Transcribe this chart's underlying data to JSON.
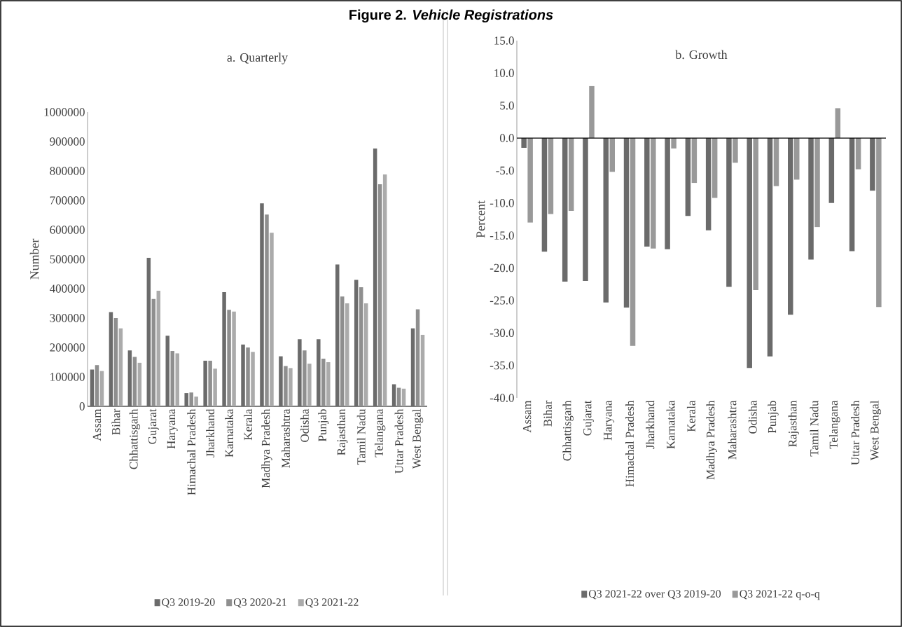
{
  "chart_data": [
    {
      "type": "bar",
      "title": "a. Quarterly",
      "ylabel": "Number",
      "annotations": [
        "Figure 2. *Vehicle Registrations*"
      ],
      "categories": [
        "Assam",
        "Bihar",
        "Chhattisgarh",
        "Gujarat",
        "Haryana",
        "Himachal Pradesh",
        "Jharkhand",
        "Karnataka",
        "Kerala",
        "Madhya Pradesh",
        "Maharashtra",
        "Odisha",
        "Punjab",
        "Rajasthan",
        "Tamil Nadu",
        "Telangana",
        "Uttar Pradesh",
        "West Bengal"
      ],
      "series": [
        {
          "name": "Q3 2019-20",
          "color": "#6b6b6b",
          "values": [
            125000,
            320000,
            190000,
            505000,
            240000,
            45000,
            155000,
            388000,
            210000,
            690000,
            170000,
            228000,
            228000,
            482000,
            430000,
            876000,
            75000,
            265000
          ]
        },
        {
          "name": "Q3 2020-21",
          "color": "#8f8f8f",
          "values": [
            140000,
            300000,
            168000,
            365000,
            188000,
            47000,
            155000,
            328000,
            200000,
            652000,
            137000,
            190000,
            162000,
            373000,
            405000,
            755000,
            63000,
            330000
          ]
        },
        {
          "name": "Q3 2021-22",
          "color": "#ababab",
          "values": [
            120000,
            265000,
            148000,
            393000,
            180000,
            33000,
            128000,
            322000,
            185000,
            590000,
            130000,
            145000,
            150000,
            350000,
            350000,
            788000,
            60000,
            243000
          ]
        }
      ],
      "ylim": [
        0,
        1000000
      ],
      "yticks": [
        0,
        100000,
        200000,
        300000,
        400000,
        500000,
        600000,
        700000,
        800000,
        900000,
        1000000
      ],
      "legend": "bottom"
    },
    {
      "type": "bar",
      "title": "b. Growth",
      "ylabel": "Percent",
      "categories": [
        "Assam",
        "Bihar",
        "Chhattisgarh",
        "Gujarat",
        "Haryana",
        "Himachal Pradesh",
        "Jharkhand",
        "Karnataka",
        "Kerala",
        "Madhya Pradesh",
        "Maharashtra",
        "Odisha",
        "Punjab",
        "Rajasthan",
        "Tamil Nadu",
        "Telangana",
        "Uttar Pradesh",
        "West Bengal"
      ],
      "series": [
        {
          "name": "Q3 2021-22 over Q3 2019-20",
          "color": "#6b6b6b",
          "values": [
            -1.5,
            -17.5,
            -22.1,
            -22.0,
            -25.3,
            -26.1,
            -16.7,
            -17.1,
            -12.0,
            -14.2,
            -22.9,
            -35.4,
            -33.6,
            -27.2,
            -18.7,
            -10.0,
            -17.4,
            -8.1
          ]
        },
        {
          "name": "Q3 2021-22 q-o-q",
          "color": "#999999",
          "values": [
            -13.0,
            -11.7,
            -11.2,
            8.0,
            -5.2,
            -32.0,
            -17.0,
            -1.6,
            -6.9,
            -9.2,
            -3.8,
            -23.4,
            -7.4,
            -6.4,
            -13.7,
            4.6,
            -4.8,
            -26.0
          ]
        }
      ],
      "ylim": [
        -40,
        15
      ],
      "yticks": [
        {
          "value": -40,
          "label": "-40.0"
        },
        {
          "value": -35,
          "label": "-35.0"
        },
        {
          "value": -30,
          "label": "-30.0"
        },
        {
          "value": -25,
          "label": "-25.0"
        },
        {
          "value": -20,
          "label": "-20.0"
        },
        {
          "value": -15,
          "label": "-15.0"
        },
        {
          "value": -10,
          "label": "-10.0"
        },
        {
          "value": -5,
          "label": "-5.0"
        },
        {
          "value": 0,
          "label": "0.0"
        },
        {
          "value": 5,
          "label": "5.0"
        },
        {
          "value": 10,
          "label": "10.0"
        },
        {
          "value": 15,
          "label": "15.0"
        }
      ],
      "legend": "bottom"
    }
  ]
}
